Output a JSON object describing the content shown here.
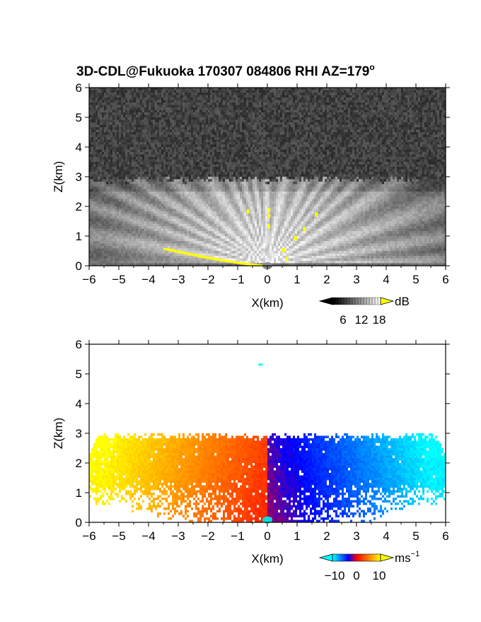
{
  "title": {
    "main": "3D-CDL@Fukuoka 170307 084806 RHI AZ=179",
    "deg": "o"
  },
  "chart_data": [
    {
      "type": "heatmap",
      "name": "Reflectivity RHI (top panel)",
      "xlabel": "X(km)",
      "ylabel": "Z(km)",
      "xlim": [
        -6,
        6
      ],
      "ylim": [
        0,
        6
      ],
      "xticks": [
        "-6",
        "-5",
        "-4",
        "-3",
        "-2",
        "-1",
        "0",
        "1",
        "2",
        "3",
        "4",
        "5",
        "6"
      ],
      "yticks": [
        "0",
        "1",
        "2",
        "3",
        "4",
        "5",
        "6"
      ],
      "colorbar": {
        "unit": "dB",
        "ticks": [
          "6",
          "12",
          "18"
        ],
        "range": [
          0,
          21
        ],
        "colors": [
          "#000000",
          "#ffffff",
          "#ffff00"
        ]
      },
      "echo_top_km": 2.9,
      "features": [
        {
          "label": "bright radial beams",
          "radial_origin_km": [
            0,
            0
          ],
          "max_range_km": 6
        },
        {
          "label": "yellow saturated pixels (surface clutter)",
          "x_km": [
            -3.5,
            -0.3
          ],
          "z_km": [
            0.0,
            0.55
          ]
        }
      ]
    },
    {
      "type": "heatmap",
      "name": "Doppler velocity RHI (bottom panel)",
      "xlabel": "X(km)",
      "ylabel": "Z(km)",
      "xlim": [
        -6,
        6
      ],
      "ylim": [
        0,
        6
      ],
      "xticks": [
        "-6",
        "-5",
        "-4",
        "-3",
        "-2",
        "-1",
        "0",
        "1",
        "2",
        "3",
        "4",
        "5",
        "6"
      ],
      "yticks": [
        "0",
        "1",
        "2",
        "3",
        "4",
        "5",
        "6"
      ],
      "colorbar": {
        "unit": "ms",
        "unit_exp": "−1",
        "ticks": [
          "−10",
          "0",
          "10"
        ],
        "range": [
          -15,
          15
        ],
        "colors": [
          "#00ffff",
          "#0000ff",
          "#ff0000",
          "#ffff00"
        ]
      },
      "velocity_left_of_zero": "positive (yellow-red)",
      "velocity_right_of_zero": "negative (blue-cyan)",
      "echo_top_km": 2.9,
      "isolated_pixel_km": [
        -0.3,
        5.35
      ]
    }
  ]
}
